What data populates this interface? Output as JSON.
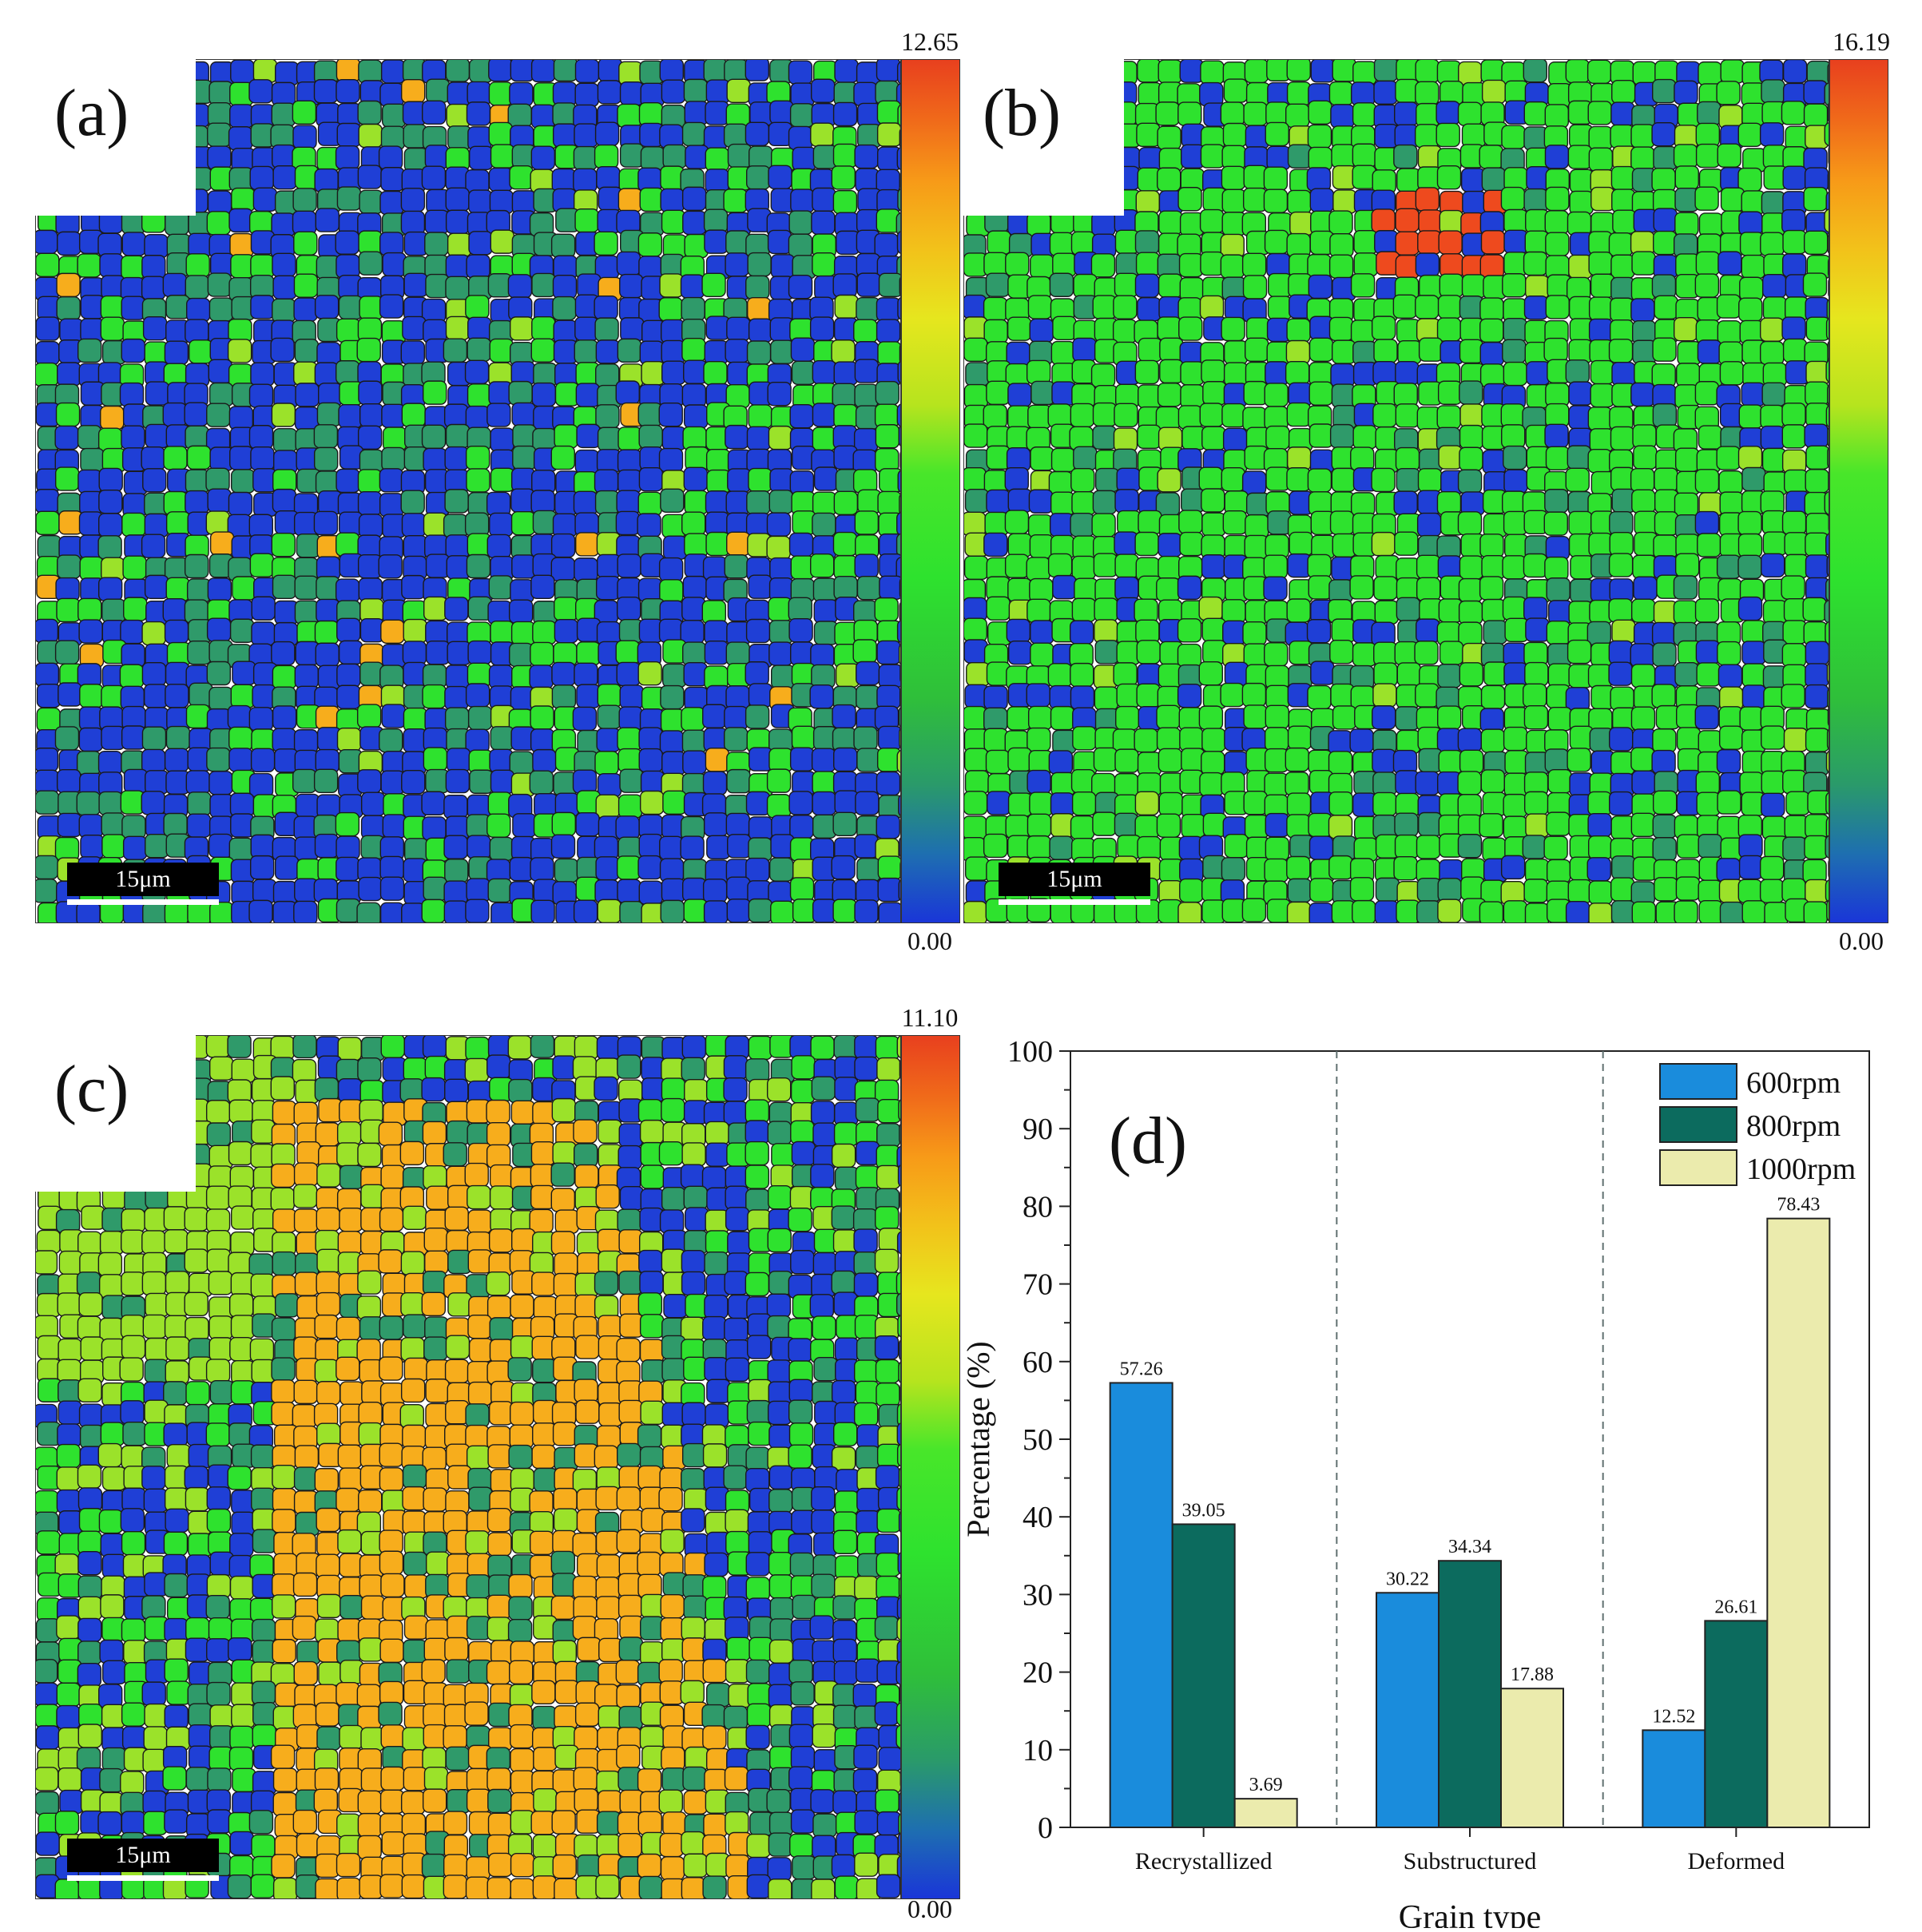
{
  "panels": [
    {
      "label": "(a)",
      "cbar_max": "12.65",
      "cbar_min": "0.00",
      "scale": "15μm"
    },
    {
      "label": "(b)",
      "cbar_max": "16.19",
      "cbar_min": "0.00",
      "scale": "15μm"
    },
    {
      "label": "(c)",
      "cbar_max": "11.10",
      "cbar_min": "0.00",
      "scale": "15μm"
    }
  ],
  "colors": {
    "blue": "#1f3fd6",
    "teal": "#2f9a6a",
    "green": "#2ee22e",
    "lime": "#9be22a",
    "yellow": "#e6e61e",
    "orange": "#f7ad1c",
    "red": "#ee4a1e",
    "boundary": "#1a1a1a"
  },
  "chart_data": {
    "type": "bar",
    "panel_label": "(d)",
    "categories": [
      "Recrystallized",
      "Substructured",
      "Deformed"
    ],
    "series": [
      {
        "name": "600rpm",
        "color": "#1a8cdc",
        "values": [
          57.26,
          30.22,
          12.52
        ]
      },
      {
        "name": "800rpm",
        "color": "#0c6b5e",
        "values": [
          39.05,
          34.34,
          26.61
        ]
      },
      {
        "name": "1000rpm",
        "color": "#ebebad",
        "values": [
          3.69,
          17.88,
          78.43
        ]
      }
    ],
    "data_labels": [
      [
        "57.26",
        "30.22",
        "12.52"
      ],
      [
        "39.05",
        "34.34",
        "26.61"
      ],
      [
        "3.69",
        "17.88",
        "78.43"
      ]
    ],
    "xlabel": "Grain type",
    "ylabel": "Percentage (%)",
    "ylim": [
      0,
      100
    ],
    "yticks": [
      0,
      10,
      20,
      30,
      40,
      50,
      60,
      70,
      80,
      90,
      100
    ],
    "legend_position": "top-right"
  }
}
